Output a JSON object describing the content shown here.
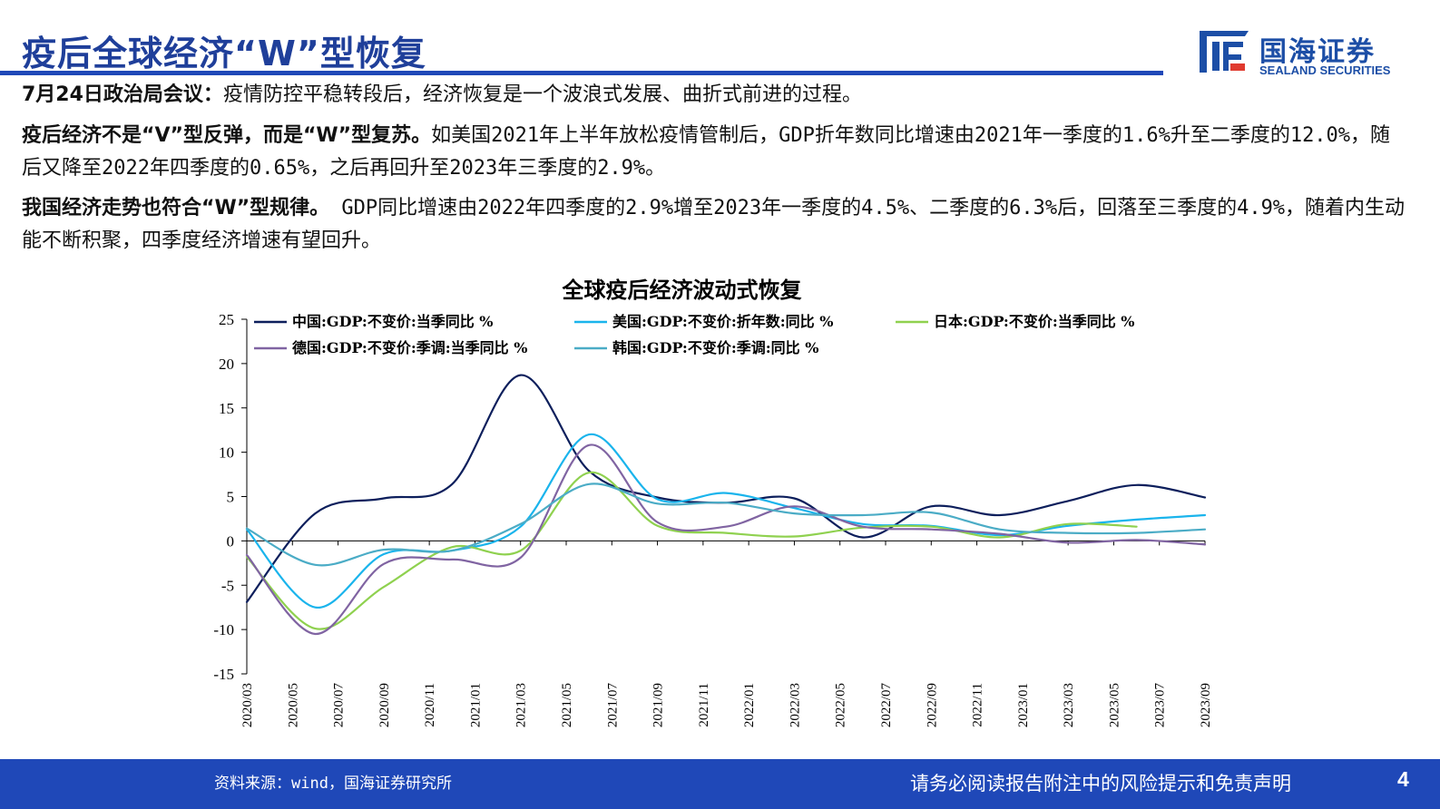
{
  "header": {
    "title": "疫后全球经济“W”型恢复",
    "logo_cn": "国海证券",
    "logo_en": "SEALAND SECURITIES"
  },
  "paragraphs": [
    {
      "bold": "7月24日政治局会议：",
      "text": "疫情防控平稳转段后，经济恢复是一个波浪式发展、曲折式前进的过程。"
    },
    {
      "bold": "疫后经济不是“V”型反弹，而是“W”型复苏。",
      "text": "如美国2021年上半年放松疫情管制后，GDP折年数同比增速由2021年一季度的1.6%升至二季度的12.0%，随后又降至2022年四季度的0.65%，之后再回升至2023年三季度的2.9%。"
    },
    {
      "bold": "我国经济走势也符合“W”型规律。",
      "text": " GDP同比增速由2022年四季度的2.9%增至2023年一季度的4.5%、二季度的6.3%后，回落至三季度的4.9%，随着内生动能不断积聚，四季度经济增速有望回升。"
    }
  ],
  "chart_data": {
    "type": "line",
    "title": "全球疫后经济波动式恢复",
    "xlabel": "",
    "ylabel": "",
    "ylim": [
      -15,
      25
    ],
    "yticks": [
      -15,
      -10,
      -5,
      0,
      5,
      10,
      15,
      20,
      25
    ],
    "x_tick_labels": [
      "2020/03",
      "2020/05",
      "2020/07",
      "2020/09",
      "2020/11",
      "2021/01",
      "2021/03",
      "2021/05",
      "2021/07",
      "2021/09",
      "2021/11",
      "2022/01",
      "2022/03",
      "2022/05",
      "2022/07",
      "2022/09",
      "2022/11",
      "2023/01",
      "2023/03",
      "2023/05",
      "2023/07",
      "2023/09"
    ],
    "grid": false,
    "legend_position": "top",
    "series": [
      {
        "name": "中国:GDP:不变价:当季同比 %",
        "color": "#0d1f5c",
        "points": [
          [
            "2020/03",
            -6.9
          ],
          [
            "2020/06",
            3.1
          ],
          [
            "2020/09",
            4.8
          ],
          [
            "2020/12",
            6.4
          ],
          [
            "2021/03",
            18.7
          ],
          [
            "2021/06",
            7.9
          ],
          [
            "2021/09",
            4.9
          ],
          [
            "2021/12",
            4.3
          ],
          [
            "2022/03",
            4.8
          ],
          [
            "2022/06",
            0.4
          ],
          [
            "2022/09",
            3.9
          ],
          [
            "2022/12",
            2.9
          ],
          [
            "2023/03",
            4.5
          ],
          [
            "2023/06",
            6.3
          ],
          [
            "2023/09",
            4.9
          ]
        ]
      },
      {
        "name": "美国:GDP:不变价:折年数:同比 %",
        "color": "#1ab4ec",
        "points": [
          [
            "2020/03",
            1.3
          ],
          [
            "2020/06",
            -7.5
          ],
          [
            "2020/09",
            -1.5
          ],
          [
            "2020/12",
            -1.1
          ],
          [
            "2021/03",
            1.6
          ],
          [
            "2021/06",
            12.0
          ],
          [
            "2021/09",
            4.7
          ],
          [
            "2021/12",
            5.4
          ],
          [
            "2022/03",
            3.7
          ],
          [
            "2022/06",
            1.9
          ],
          [
            "2022/09",
            1.7
          ],
          [
            "2022/12",
            0.65
          ],
          [
            "2023/03",
            1.7
          ],
          [
            "2023/06",
            2.4
          ],
          [
            "2023/09",
            2.9
          ]
        ]
      },
      {
        "name": "日本:GDP:不变价:当季同比 %",
        "color": "#8fd14f",
        "points": [
          [
            "2020/03",
            -1.8
          ],
          [
            "2020/06",
            -9.9
          ],
          [
            "2020/09",
            -5.2
          ],
          [
            "2020/12",
            -0.7
          ],
          [
            "2021/03",
            -1.1
          ],
          [
            "2021/06",
            7.7
          ],
          [
            "2021/09",
            1.7
          ],
          [
            "2021/12",
            0.9
          ],
          [
            "2022/03",
            0.5
          ],
          [
            "2022/06",
            1.5
          ],
          [
            "2022/09",
            1.6
          ],
          [
            "2022/12",
            0.4
          ],
          [
            "2023/03",
            1.9
          ],
          [
            "2023/06",
            1.6
          ]
        ]
      },
      {
        "name": "德国:GDP:不变价:季调:当季同比 %",
        "color": "#8064a2",
        "points": [
          [
            "2020/03",
            -1.6
          ],
          [
            "2020/06",
            -10.5
          ],
          [
            "2020/09",
            -2.6
          ],
          [
            "2020/12",
            -2.1
          ],
          [
            "2021/03",
            -1.9
          ],
          [
            "2021/06",
            10.8
          ],
          [
            "2021/09",
            2.1
          ],
          [
            "2021/12",
            1.6
          ],
          [
            "2022/03",
            3.9
          ],
          [
            "2022/06",
            1.6
          ],
          [
            "2022/09",
            1.3
          ],
          [
            "2022/12",
            0.8
          ],
          [
            "2023/03",
            -0.2
          ],
          [
            "2023/06",
            0.1
          ],
          [
            "2023/09",
            -0.4
          ]
        ]
      },
      {
        "name": "韩国:GDP:不变价:季调:同比 %",
        "color": "#4bacc6",
        "points": [
          [
            "2020/03",
            1.4
          ],
          [
            "2020/06",
            -2.7
          ],
          [
            "2020/09",
            -1.0
          ],
          [
            "2020/12",
            -1.1
          ],
          [
            "2021/03",
            1.9
          ],
          [
            "2021/06",
            6.4
          ],
          [
            "2021/09",
            4.2
          ],
          [
            "2021/12",
            4.3
          ],
          [
            "2022/03",
            3.1
          ],
          [
            "2022/06",
            2.9
          ],
          [
            "2022/09",
            3.2
          ],
          [
            "2022/12",
            1.3
          ],
          [
            "2023/03",
            0.9
          ],
          [
            "2023/06",
            0.9
          ],
          [
            "2023/09",
            1.3
          ]
        ]
      }
    ]
  },
  "footer": {
    "source": "资料来源：wind，国海证券研究所",
    "disclaimer": "请务必阅读报告附注中的风险提示和免责声明",
    "page": "4"
  }
}
